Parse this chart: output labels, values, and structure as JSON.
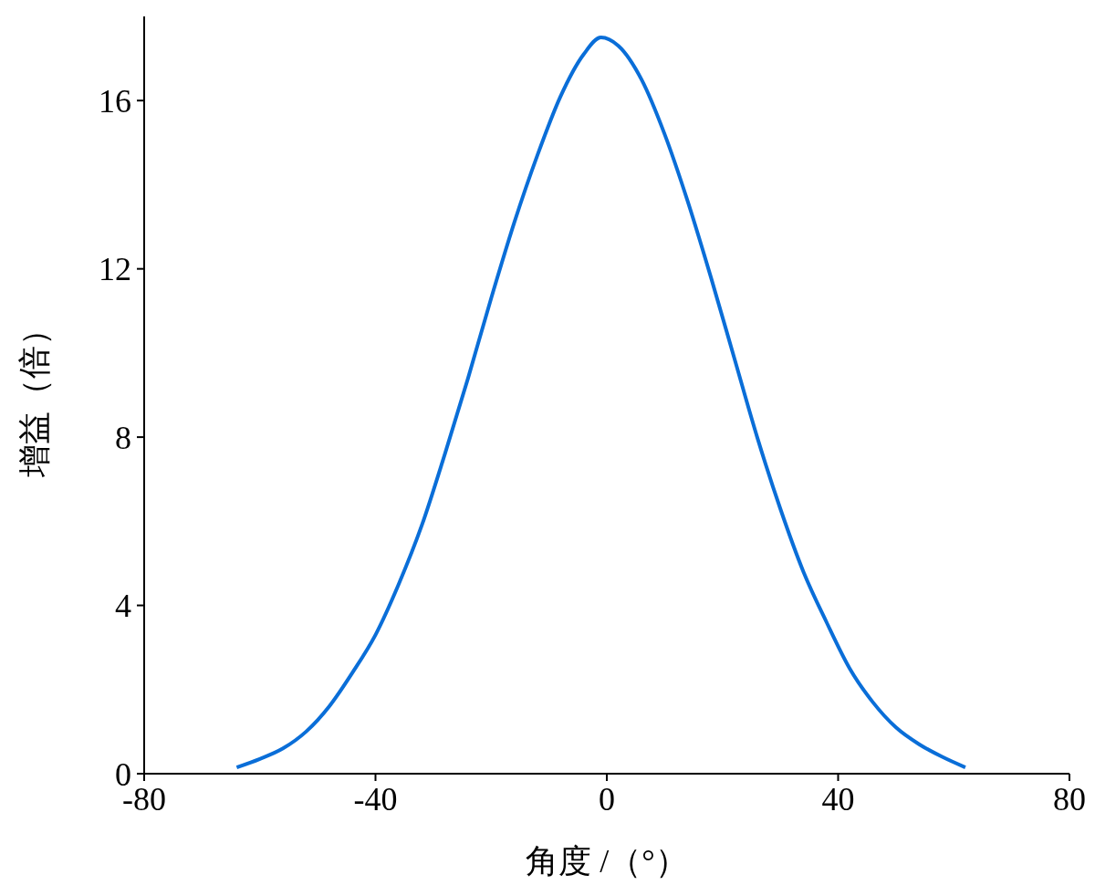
{
  "chart_data": {
    "type": "line",
    "xlabel": "角度 /（°）",
    "ylabel": "增益（倍）",
    "x": [
      -64,
      -60,
      -56,
      -52,
      -48,
      -44,
      -40,
      -36,
      -32,
      -28,
      -24,
      -20,
      -16,
      -12,
      -8,
      -4,
      -1,
      2,
      6,
      10,
      14,
      18,
      22,
      26,
      30,
      34,
      38,
      42,
      46,
      50,
      54,
      58,
      62
    ],
    "series": [
      {
        "color": "#0a6ed8",
        "values": [
          0.15,
          0.35,
          0.6,
          1.0,
          1.6,
          2.4,
          3.3,
          4.5,
          5.9,
          7.6,
          9.4,
          11.3,
          13.1,
          14.7,
          16.1,
          17.1,
          17.5,
          17.3,
          16.5,
          15.2,
          13.6,
          11.8,
          9.9,
          8.0,
          6.3,
          4.8,
          3.6,
          2.5,
          1.7,
          1.1,
          0.7,
          0.4,
          0.15
        ]
      }
    ],
    "xlim": [
      -80,
      80
    ],
    "xticks": [
      -80,
      -40,
      0,
      40,
      80
    ],
    "ylim": [
      0,
      18
    ],
    "yticks": [
      0,
      4,
      8,
      12,
      16
    ],
    "grid": false,
    "legend": false,
    "marker": "none",
    "line_style": "solid"
  }
}
